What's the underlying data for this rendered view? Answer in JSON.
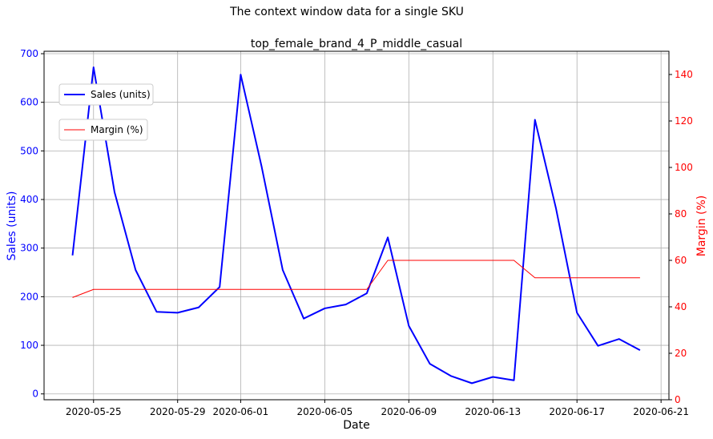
{
  "chart_data": {
    "type": "line",
    "suptitle": "The context window data for a single SKU",
    "title": "top_female_brand_4_P_middle_casual",
    "xlabel": "Date",
    "ylabel_left": "Sales (units)",
    "ylabel_right": "Margin (%)",
    "x": [
      "2020-05-24",
      "2020-05-25",
      "2020-05-26",
      "2020-05-27",
      "2020-05-28",
      "2020-05-29",
      "2020-05-30",
      "2020-05-31",
      "2020-06-01",
      "2020-06-02",
      "2020-06-03",
      "2020-06-04",
      "2020-06-05",
      "2020-06-06",
      "2020-06-07",
      "2020-06-08",
      "2020-06-09",
      "2020-06-10",
      "2020-06-11",
      "2020-06-12",
      "2020-06-13",
      "2020-06-14",
      "2020-06-15",
      "2020-06-16",
      "2020-06-17",
      "2020-06-18",
      "2020-06-19",
      "2020-06-20"
    ],
    "x_ticks": [
      "2020-05-25",
      "2020-05-29",
      "2020-06-01",
      "2020-06-05",
      "2020-06-09",
      "2020-06-13",
      "2020-06-17",
      "2020-06-21"
    ],
    "xlim": [
      "2020-05-22T15:30",
      "2020-06-21T09:00"
    ],
    "left_axis": {
      "ylim": [
        -12,
        705
      ],
      "ticks": [
        0,
        100,
        200,
        300,
        400,
        500,
        600,
        700
      ],
      "color": "#0000ff"
    },
    "right_axis": {
      "ylim": [
        0,
        150
      ],
      "ticks": [
        0,
        20,
        40,
        60,
        80,
        100,
        120,
        140
      ],
      "color": "#ff0000"
    },
    "grid": true,
    "series": [
      {
        "name": "Sales (units)",
        "axis": "left",
        "color": "#0000ff",
        "values": [
          285,
          672,
          415,
          255,
          169,
          167,
          178,
          220,
          657,
          467,
          255,
          155,
          176,
          184,
          207,
          322,
          140,
          62,
          37,
          22,
          35,
          28,
          564,
          382,
          167,
          99,
          113,
          90
        ]
      },
      {
        "name": "Margin (%)",
        "axis": "right",
        "color": "#ff0000",
        "values": [
          44,
          47.5,
          47.5,
          47.5,
          47.5,
          47.5,
          47.5,
          47.5,
          47.5,
          47.5,
          47.5,
          47.5,
          47.5,
          47.5,
          47.5,
          60,
          60,
          60,
          60,
          60,
          60,
          60,
          52.5,
          52.5,
          52.5,
          52.5,
          52.5,
          52.5
        ]
      }
    ],
    "legend_placement": "upper-left"
  }
}
